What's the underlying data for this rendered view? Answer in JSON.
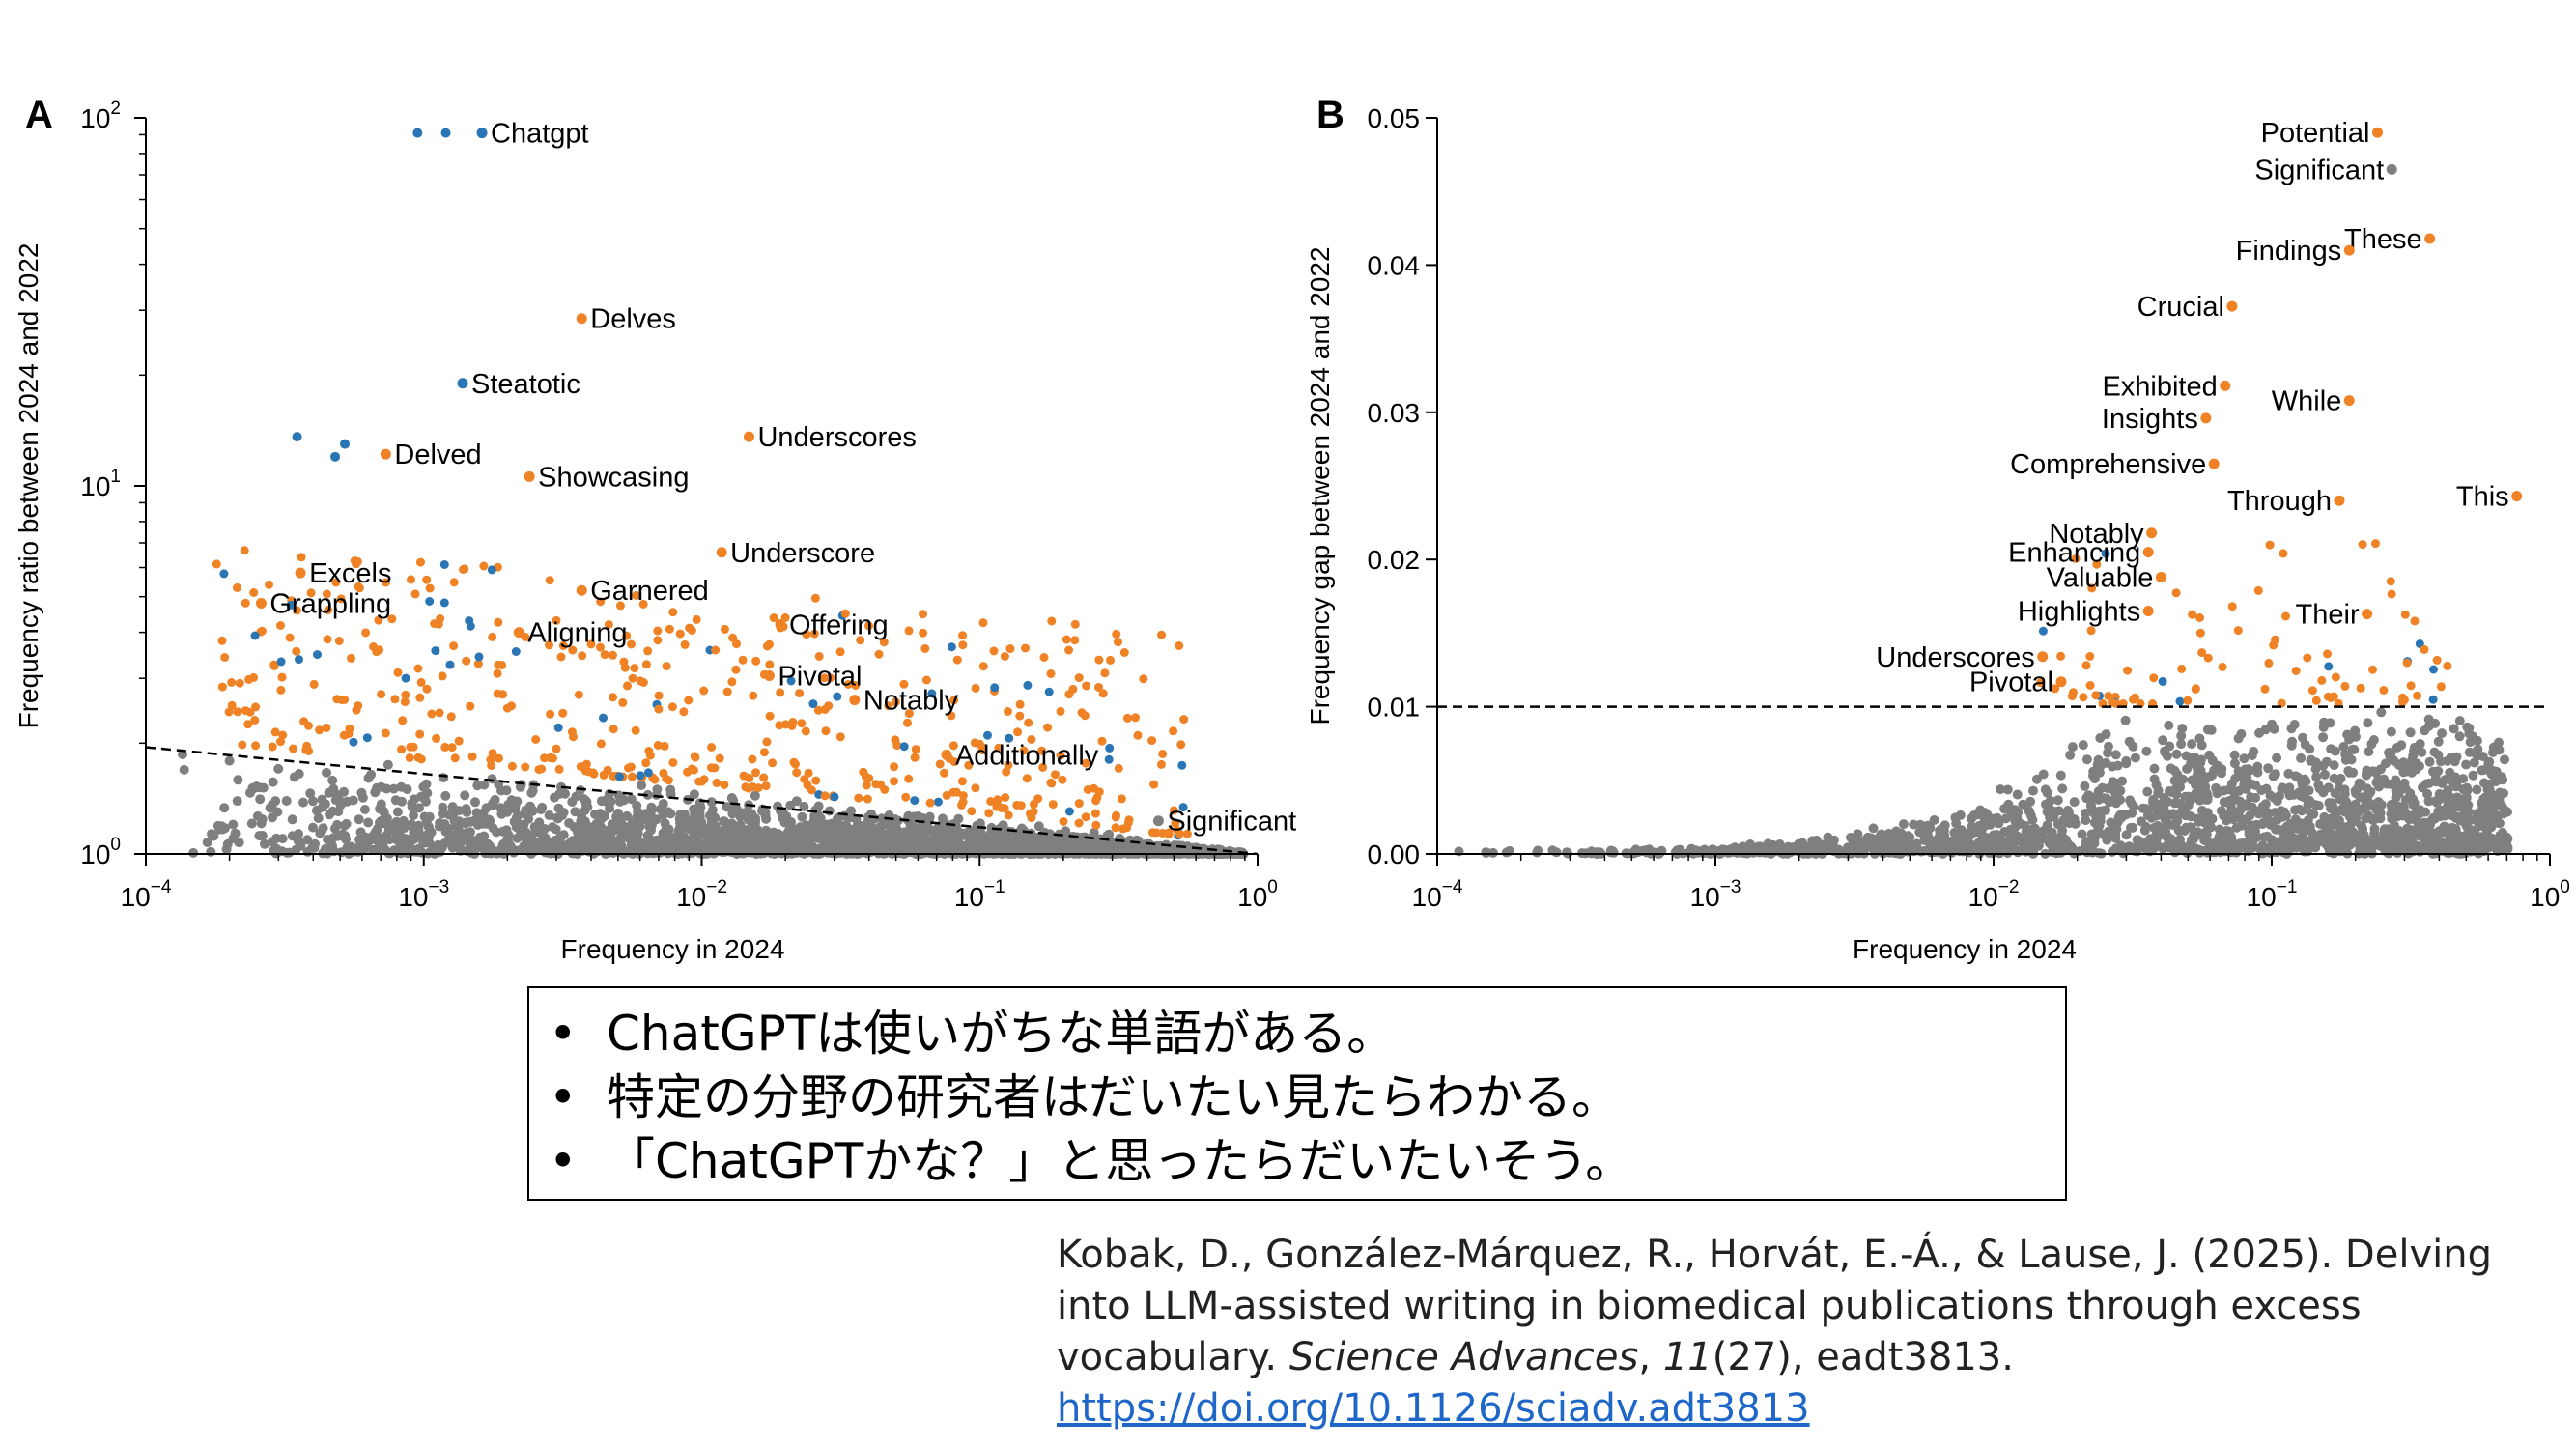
{
  "colors": {
    "orange": "#f08226",
    "blue": "#2a76b4",
    "gray": "#7f7f7f",
    "axis": "#000000"
  },
  "chart_data": [
    {
      "type": "scatter",
      "panel_label": "A",
      "xlabel": "Frequency in 2024",
      "ylabel": "Frequency ratio between 2024 and 2022",
      "xscale": "log",
      "yscale": "log",
      "xlim": [
        0.0001,
        1
      ],
      "ylim": [
        1,
        100
      ],
      "x_ticks": [
        {
          "value": 0.0001,
          "base": "10",
          "exp": "−4"
        },
        {
          "value": 0.001,
          "base": "10",
          "exp": "−3"
        },
        {
          "value": 0.01,
          "base": "10",
          "exp": "−2"
        },
        {
          "value": 0.1,
          "base": "10",
          "exp": "−1"
        },
        {
          "value": 1,
          "base": "10",
          "exp": "0"
        }
      ],
      "y_ticks": [
        {
          "value": 1,
          "base": "10",
          "exp": "0"
        },
        {
          "value": 10,
          "base": "10",
          "exp": "1"
        },
        {
          "value": 100,
          "base": "10",
          "exp": "2"
        }
      ],
      "threshold_line": {
        "x1": 0.0001,
        "y1": 1.95,
        "x2": 1,
        "y2": 1.0,
        "style": "dashed"
      },
      "labeled_points": [
        {
          "word": "Chatgpt",
          "x": 0.00162,
          "y": 91,
          "color": "blue"
        },
        {
          "word": "Delves",
          "x": 0.0037,
          "y": 28.5,
          "color": "orange"
        },
        {
          "word": "Steatotic",
          "x": 0.00138,
          "y": 19,
          "color": "blue"
        },
        {
          "word": "Underscores",
          "x": 0.0148,
          "y": 13.6,
          "color": "orange"
        },
        {
          "word": "Delved",
          "x": 0.00073,
          "y": 12.2,
          "color": "orange"
        },
        {
          "word": "Showcasing",
          "x": 0.0024,
          "y": 10.6,
          "color": "orange"
        },
        {
          "word": "Underscore",
          "x": 0.0118,
          "y": 6.6,
          "color": "orange"
        },
        {
          "word": "Excels",
          "x": 0.00036,
          "y": 5.8,
          "color": "orange"
        },
        {
          "word": "Garnered",
          "x": 0.0037,
          "y": 5.2,
          "color": "orange"
        },
        {
          "word": "Grappling",
          "x": 0.00026,
          "y": 4.8,
          "color": "orange"
        },
        {
          "word": "Offering",
          "x": 0.0192,
          "y": 4.2,
          "color": "orange"
        },
        {
          "word": "Aligning",
          "x": 0.0022,
          "y": 4.0,
          "color": "orange"
        },
        {
          "word": "Pivotal",
          "x": 0.0175,
          "y": 3.05,
          "color": "orange"
        },
        {
          "word": "Notably",
          "x": 0.0355,
          "y": 2.62,
          "color": "orange"
        },
        {
          "word": "Additionally",
          "x": 0.076,
          "y": 1.86,
          "color": "orange"
        },
        {
          "word": "Significant",
          "x": 0.44,
          "y": 1.23,
          "color": "gray"
        }
      ],
      "extra_colored_points": [
        {
          "x": 0.00095,
          "y": 91,
          "color": "blue"
        },
        {
          "x": 0.0012,
          "y": 91,
          "color": "blue"
        },
        {
          "x": 0.00035,
          "y": 13.6,
          "color": "blue"
        },
        {
          "x": 0.00052,
          "y": 13,
          "color": "blue"
        },
        {
          "x": 0.00048,
          "y": 12,
          "color": "blue"
        }
      ],
      "annotation": "~1000 additional unlabeled orange/blue points above the line and ~20000 gray points below it"
    },
    {
      "type": "scatter",
      "panel_label": "B",
      "xlabel": "Frequency in 2024",
      "ylabel": "Frequency gap between 2024 and 2022",
      "xscale": "log",
      "yscale": "linear",
      "xlim": [
        0.0001,
        1
      ],
      "ylim": [
        0,
        0.05
      ],
      "x_ticks": [
        {
          "value": 0.0001,
          "base": "10",
          "exp": "−4"
        },
        {
          "value": 0.001,
          "base": "10",
          "exp": "−3"
        },
        {
          "value": 0.01,
          "base": "10",
          "exp": "−2"
        },
        {
          "value": 0.1,
          "base": "10",
          "exp": "−1"
        },
        {
          "value": 1,
          "base": "10",
          "exp": "0"
        }
      ],
      "y_ticks": [
        {
          "value": 0,
          "label": "0.00"
        },
        {
          "value": 0.01,
          "label": "0.01"
        },
        {
          "value": 0.02,
          "label": "0.02"
        },
        {
          "value": 0.03,
          "label": "0.03"
        },
        {
          "value": 0.04,
          "label": "0.04"
        },
        {
          "value": 0.05,
          "label": "0.05"
        }
      ],
      "threshold_line": {
        "x1": 0.0001,
        "y1": 0.01,
        "x2": 1,
        "y2": 0.01,
        "style": "dashed"
      },
      "labeled_points": [
        {
          "word": "Potential",
          "x": 0.24,
          "y": 0.049,
          "color": "orange"
        },
        {
          "word": "Significant",
          "x": 0.27,
          "y": 0.0465,
          "color": "gray"
        },
        {
          "word": "These",
          "x": 0.37,
          "y": 0.0418,
          "color": "orange"
        },
        {
          "word": "Findings",
          "x": 0.19,
          "y": 0.041,
          "color": "orange"
        },
        {
          "word": "Crucial",
          "x": 0.072,
          "y": 0.0372,
          "color": "orange"
        },
        {
          "word": "Exhibited",
          "x": 0.068,
          "y": 0.0318,
          "color": "orange"
        },
        {
          "word": "While",
          "x": 0.19,
          "y": 0.0308,
          "color": "orange"
        },
        {
          "word": "Insights",
          "x": 0.058,
          "y": 0.0296,
          "color": "orange"
        },
        {
          "word": "Comprehensive",
          "x": 0.062,
          "y": 0.0265,
          "color": "orange"
        },
        {
          "word": "This",
          "x": 0.76,
          "y": 0.0243,
          "color": "orange"
        },
        {
          "word": "Through",
          "x": 0.175,
          "y": 0.024,
          "color": "orange"
        },
        {
          "word": "Notably",
          "x": 0.037,
          "y": 0.0218,
          "color": "orange"
        },
        {
          "word": "Enhancing",
          "x": 0.036,
          "y": 0.0205,
          "color": "orange"
        },
        {
          "word": "Valuable",
          "x": 0.04,
          "y": 0.0188,
          "color": "orange"
        },
        {
          "word": "Highlights",
          "x": 0.036,
          "y": 0.0165,
          "color": "orange"
        },
        {
          "word": "Their",
          "x": 0.22,
          "y": 0.0163,
          "color": "orange"
        },
        {
          "word": "Underscores",
          "x": 0.015,
          "y": 0.0134,
          "color": "orange"
        },
        {
          "word": "Pivotal",
          "x": 0.0175,
          "y": 0.0117,
          "color": "orange"
        }
      ],
      "annotation": "~180 additional unlabeled orange/blue points above 0.01 and ~8000 gray points below"
    }
  ],
  "bullets": {
    "items": [
      {
        "marker": "•",
        "text": "ChatGPTは使いがちな単語がある。"
      },
      {
        "marker": "•",
        "text": "特定の分野の研究者はだいたい見たらわかる。"
      },
      {
        "marker": "•",
        "text": "「ChatGPTかな？」と思ったらだいたいそう。"
      }
    ]
  },
  "citation": {
    "authors": "Kobak, D., González-Márquez, R., Horvát, E.-Á., & Lause, J. (2025). Delving into LLM-assisted writing in biomedical publications through excess vocabulary. ",
    "journal": "Science Advances",
    "sep1": ", ",
    "volume": "11",
    "issue_rest": "(27), eadt3813.",
    "url": "https://doi.org/10.1126/sciadv.adt3813"
  }
}
